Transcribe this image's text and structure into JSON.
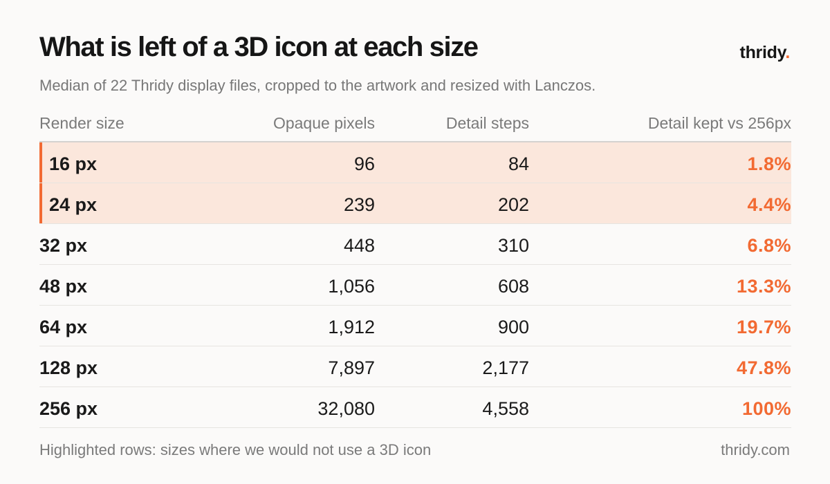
{
  "title": "What is left of a 3D icon at each size",
  "subtitle": "Median of 22 Thridy display files, cropped to the artwork and resized with Lanczos.",
  "brand": {
    "name": "thridy",
    "dot": "."
  },
  "footnote": "Highlighted rows: sizes where we would not use a 3D icon",
  "site": "thridy.com",
  "colors": {
    "accent": "#f26a32",
    "highlight_bg": "#fbe7dc"
  },
  "chart_data": {
    "type": "table",
    "columns": [
      "Render size",
      "Opaque pixels",
      "Detail steps",
      "Detail kept vs 256px"
    ],
    "rows": [
      {
        "size": "16 px",
        "opaque": "96",
        "steps": "84",
        "kept": "1.8%",
        "highlighted": true
      },
      {
        "size": "24 px",
        "opaque": "239",
        "steps": "202",
        "kept": "4.4%",
        "highlighted": true
      },
      {
        "size": "32 px",
        "opaque": "448",
        "steps": "310",
        "kept": "6.8%",
        "highlighted": false
      },
      {
        "size": "48 px",
        "opaque": "1,056",
        "steps": "608",
        "kept": "13.3%",
        "highlighted": false
      },
      {
        "size": "64 px",
        "opaque": "1,912",
        "steps": "900",
        "kept": "19.7%",
        "highlighted": false
      },
      {
        "size": "128 px",
        "opaque": "7,897",
        "steps": "2,177",
        "kept": "47.8%",
        "highlighted": false
      },
      {
        "size": "256 px",
        "opaque": "32,080",
        "steps": "4,558",
        "kept": "100%",
        "highlighted": false
      }
    ]
  }
}
